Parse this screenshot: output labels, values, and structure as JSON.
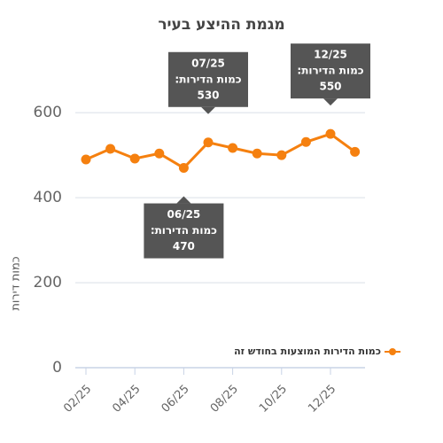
{
  "chart_data": {
    "type": "line",
    "title": "מגמת ההיצע בעיר",
    "ylabel": "כמות דירות",
    "categories": [
      "02/25",
      null,
      "04/25",
      null,
      "06/25",
      null,
      "08/25",
      null,
      "10/25",
      null,
      "12/25",
      null
    ],
    "series": [
      {
        "name": "כמות הדירות המוצעות בחודש זה",
        "color": "#f5800f",
        "values": [
          490,
          515,
          492,
          504,
          470,
          530,
          517,
          504,
          500,
          531,
          550,
          508
        ]
      }
    ],
    "ylim": [
      0,
      640
    ],
    "yticks": [
      0,
      200,
      400,
      600
    ],
    "grid": true,
    "legend": "right",
    "annotations": [
      {
        "x": "07/25",
        "label": "כמות הדירות:",
        "value": 530
      },
      {
        "x": "06/25",
        "label": "כמות הדירות:",
        "value": 470
      },
      {
        "x": "12/25",
        "label": "כמות הדירות:",
        "value": 550
      }
    ]
  }
}
